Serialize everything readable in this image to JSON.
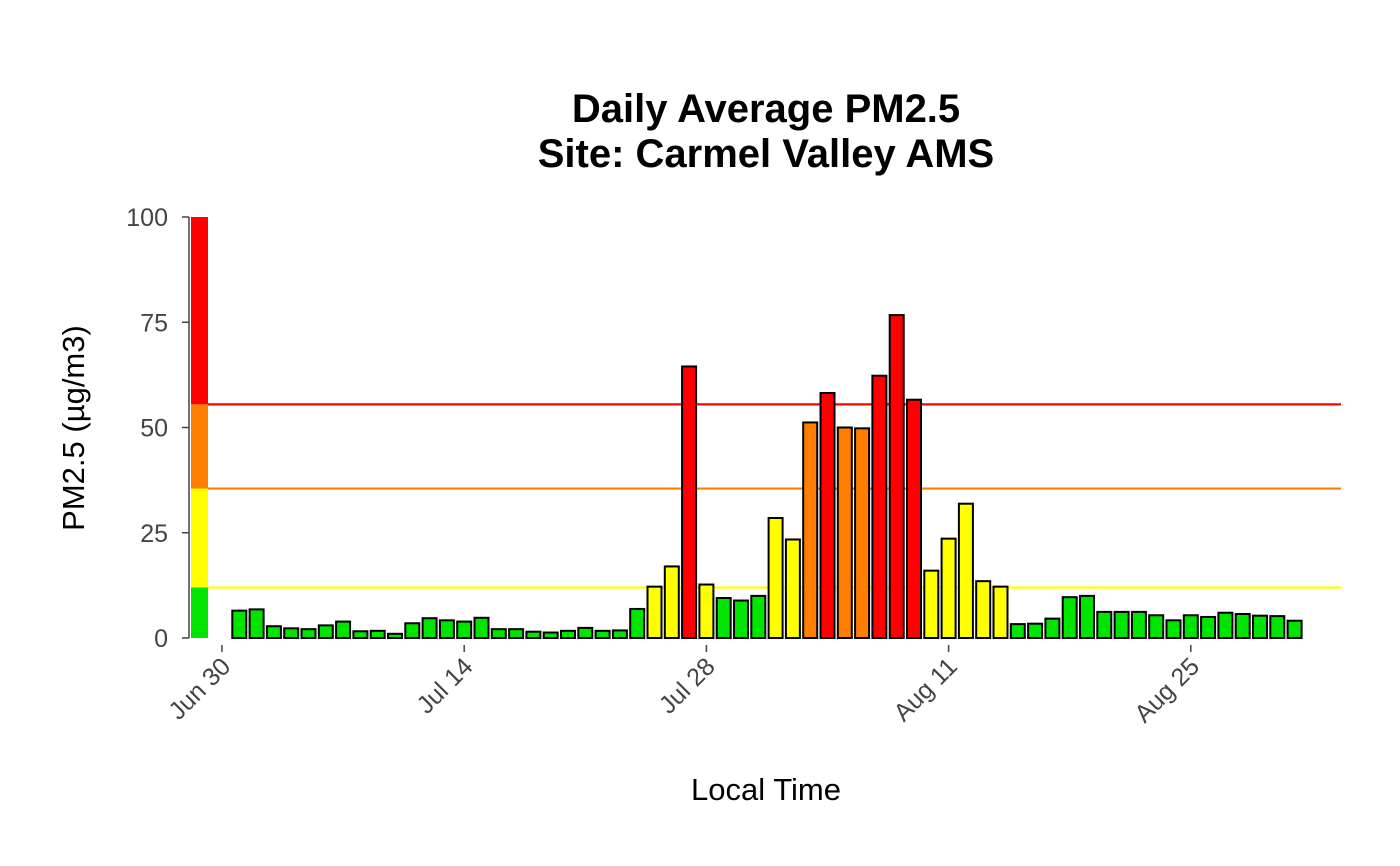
{
  "chart_data": {
    "type": "bar",
    "title": "Daily Average PM2.5",
    "subtitle": "Site: Carmel Valley AMS",
    "xlabel": "Local Time",
    "ylabel": "PM2.5 (µg/m3)",
    "ylim": [
      0,
      100
    ],
    "y_ticks": [
      "0",
      "25",
      "50",
      "75",
      "100"
    ],
    "x_start_date": "Jun 30",
    "x_ticks": [
      {
        "label": "Jun 30",
        "day": 0
      },
      {
        "label": "Jul 14",
        "day": 14
      },
      {
        "label": "Jul 28",
        "day": 28
      },
      {
        "label": "Aug 11",
        "day": 42
      },
      {
        "label": "Aug 25",
        "day": 56
      }
    ],
    "values": [
      6.5,
      6.8,
      2.8,
      2.3,
      2.1,
      3.0,
      3.9,
      1.6,
      1.7,
      1.0,
      3.5,
      4.7,
      4.2,
      3.9,
      4.8,
      2.1,
      2.1,
      1.5,
      1.3,
      1.7,
      2.4,
      1.7,
      1.8,
      6.9,
      12.2,
      17.0,
      64.5,
      12.7,
      9.5,
      8.9,
      10.0,
      28.5,
      23.4,
      51.2,
      58.2,
      50.0,
      49.8,
      62.3,
      76.7,
      56.6,
      16.0,
      23.6,
      31.9,
      13.5,
      12.2,
      3.3,
      3.4,
      4.6,
      9.7,
      10.0,
      6.2,
      6.2,
      6.2,
      5.4,
      4.2,
      5.4,
      5.0,
      6.0,
      5.7,
      5.3,
      5.2,
      4.1
    ],
    "thresholds": [
      {
        "value": 12,
        "color": "#ffff00"
      },
      {
        "value": 35.5,
        "color": "#ff7e00"
      },
      {
        "value": 55.5,
        "color": "#ff0000"
      }
    ],
    "category_colors": {
      "good": "#00e400",
      "moderate": "#ffff00",
      "usg": "#ff7e00",
      "unhealthy": "#ff0000"
    },
    "grid": false,
    "legend": "none"
  }
}
